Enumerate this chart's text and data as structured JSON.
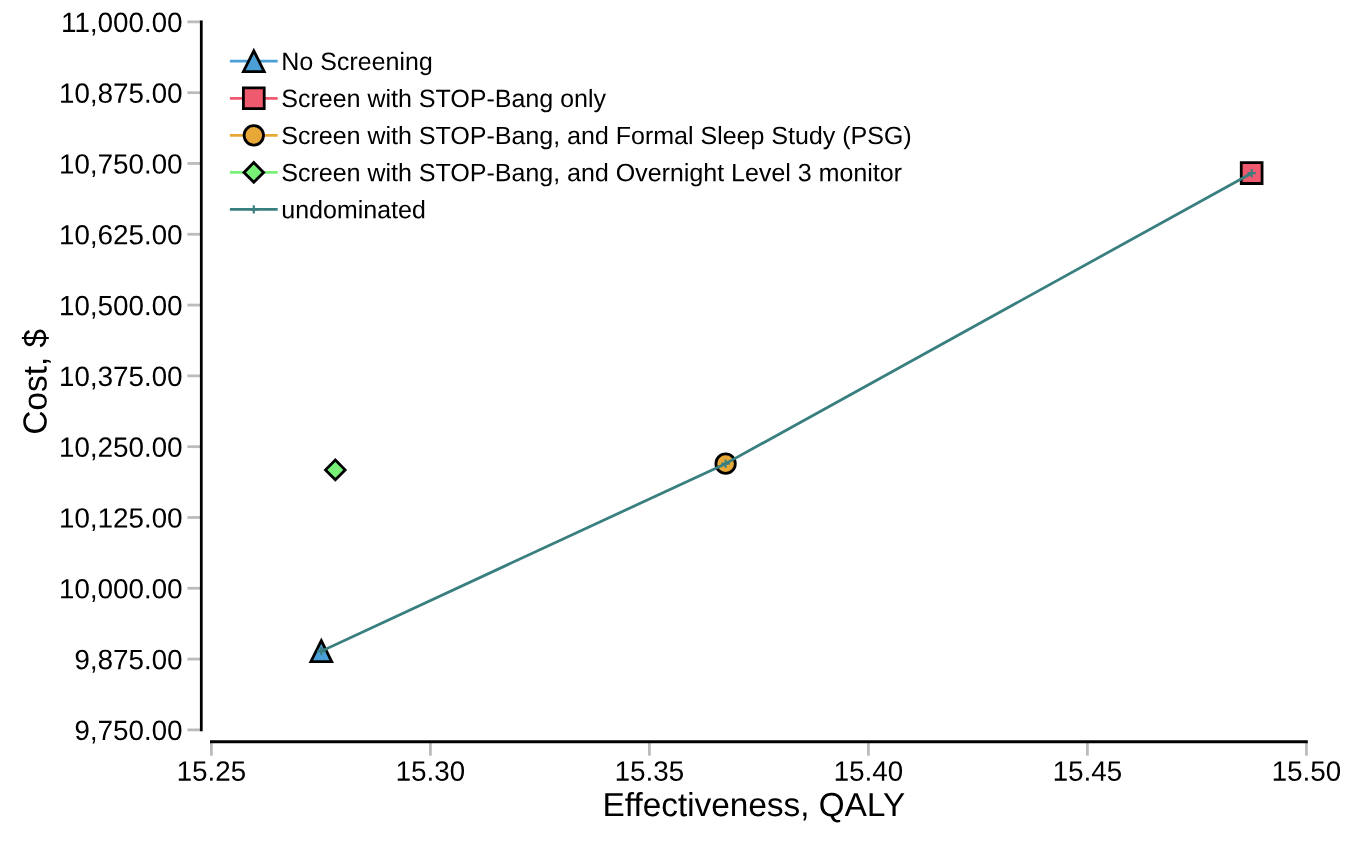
{
  "chart_data": {
    "type": "line",
    "xlabel": "Effectiveness, QALY",
    "ylabel": "Cost, $",
    "series": [
      {
        "name": "No Screening",
        "color": "#4a9fd6",
        "marker": "triangle",
        "x": [
          15.2751
        ],
        "values": [
          9889
        ]
      },
      {
        "name": "Screen with STOP-Bang only",
        "color": "#f05a6e",
        "marker": "square",
        "x": [
          15.4875
        ],
        "values": [
          10733
        ]
      },
      {
        "name": "Screen with STOP-Bang, and Formal Sleep Study (PSG)",
        "color": "#e8a838",
        "marker": "circle",
        "x": [
          15.3674
        ],
        "values": [
          10220
        ]
      },
      {
        "name": "Screen with STOP-Bang, and Overnight Level 3 monitor",
        "color": "#78f078",
        "marker": "diamond",
        "x": [
          15.2783
        ],
        "values": [
          10209
        ]
      },
      {
        "name": "undominated",
        "color": "#3a7f7f",
        "marker": "cross",
        "x": [
          15.2751,
          15.3674,
          15.4875
        ],
        "values": [
          9889,
          10220,
          10733
        ]
      }
    ],
    "xlim": [
      15.2477,
      15.5
    ],
    "ylim": [
      9729,
      11000
    ],
    "xticks": [
      {
        "value": 15.25,
        "label": "15.25"
      },
      {
        "value": 15.3,
        "label": "15.30"
      },
      {
        "value": 15.35,
        "label": "15.35"
      },
      {
        "value": 15.4,
        "label": "15.40"
      },
      {
        "value": 15.45,
        "label": "15.45"
      },
      {
        "value": 15.5,
        "label": "15.50"
      }
    ],
    "yticks": [
      {
        "value": 9750,
        "label": "9,750.00"
      },
      {
        "value": 9875,
        "label": "9,875.00"
      },
      {
        "value": 10000,
        "label": "10,000.00"
      },
      {
        "value": 10125,
        "label": "10,125.00"
      },
      {
        "value": 10250,
        "label": "10,250.00"
      },
      {
        "value": 10375,
        "label": "10,375.00"
      },
      {
        "value": 10500,
        "label": "10,500.00"
      },
      {
        "value": 10625,
        "label": "10,625.00"
      },
      {
        "value": 10750,
        "label": "10,750.00"
      },
      {
        "value": 10875,
        "label": "10,875.00"
      },
      {
        "value": 11000,
        "label": "11,000.00"
      }
    ],
    "grid": false,
    "legend": "top left"
  }
}
